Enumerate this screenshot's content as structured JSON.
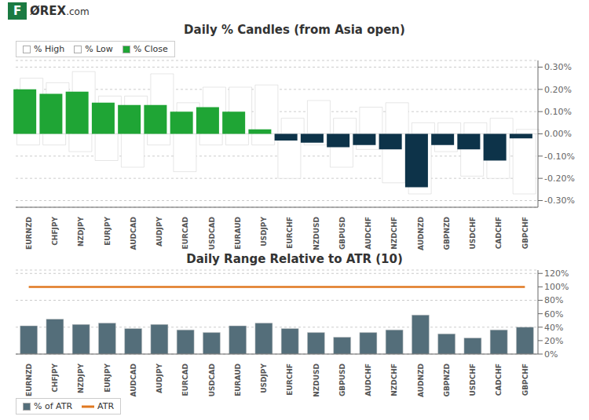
{
  "chart_data": [
    {
      "type": "bar",
      "title": "Daily % Candles (from Asia open)",
      "annotations": [
        "F",
        "ØREX",
        ".com"
      ],
      "categories": [
        "EURNZD",
        "CHFJPY",
        "NZDJPY",
        "EURJPY",
        "AUDCAD",
        "AUDJPY",
        "EURCAD",
        "USDCAD",
        "EURAUD",
        "USDJPY",
        "EURCHF",
        "NZDUSD",
        "GBPUSD",
        "AUDCHF",
        "NZDCHF",
        "AUDNZD",
        "GBPNZD",
        "USDCHF",
        "CADCHF",
        "GBPCHF"
      ],
      "series": [
        {
          "name": "% High",
          "color": "#FFFFFF",
          "values": [
            0.25,
            0.23,
            0.28,
            0.17,
            0.17,
            0.27,
            0.14,
            0.21,
            0.21,
            0.22,
            0.07,
            0.15,
            0.07,
            0.12,
            0.14,
            0.05,
            0.05,
            0.05,
            0.07,
            0.02
          ]
        },
        {
          "name": "% Low",
          "color": "#FFFFFF",
          "values": [
            -0.05,
            -0.05,
            -0.08,
            -0.12,
            -0.15,
            -0.05,
            -0.17,
            -0.05,
            -0.05,
            -0.05,
            -0.2,
            -0.05,
            -0.15,
            -0.07,
            -0.22,
            -0.27,
            -0.08,
            -0.19,
            -0.2,
            -0.27
          ]
        },
        {
          "name": "% Close",
          "color": "#1FA535",
          "values": [
            0.2,
            0.18,
            0.19,
            0.14,
            0.13,
            0.13,
            0.1,
            0.12,
            0.1,
            0.02,
            -0.03,
            -0.04,
            -0.06,
            -0.05,
            -0.07,
            -0.24,
            -0.05,
            -0.07,
            -0.12,
            -0.02
          ],
          "colors": [
            "#1FA535",
            "#1FA535",
            "#1FA535",
            "#1FA535",
            "#1FA535",
            "#1FA535",
            "#1FA535",
            "#1FA535",
            "#1FA535",
            "#1FA535",
            "#0D3349",
            "#0D3349",
            "#0D3349",
            "#0D3349",
            "#0D3349",
            "#0D3349",
            "#0D3349",
            "#0D3349",
            "#0D3349",
            "#0D3349"
          ]
        }
      ],
      "ylim": [
        -0.33,
        0.33
      ],
      "yticks": [
        {
          "value": -0.3,
          "label": "-0.30%"
        },
        {
          "value": -0.2,
          "label": "-0.20%"
        },
        {
          "value": -0.1,
          "label": "-0.10%"
        },
        {
          "value": 0.0,
          "label": "0.00%"
        },
        {
          "value": 0.1,
          "label": "0.10%"
        },
        {
          "value": 0.2,
          "label": "0.20%"
        },
        {
          "value": 0.3,
          "label": "0.30%"
        }
      ],
      "grid": true,
      "legend": "upper right"
    },
    {
      "type": "bar",
      "title": "Daily Range Relative to ATR (10)",
      "categories": [
        "EURNZD",
        "CHFJPY",
        "NZDJPY",
        "EURJPY",
        "AUDCAD",
        "AUDJPY",
        "EURCAD",
        "USDCAD",
        "EURAUD",
        "USDJPY",
        "EURCHF",
        "NZDUSD",
        "GBPUSD",
        "AUDCHF",
        "NZDCHF",
        "AUDNZD",
        "GBPNZD",
        "USDCHF",
        "CADCHF",
        "GBPCHF"
      ],
      "series": [
        {
          "name": "% of ATR",
          "color": "#546E7A",
          "values": [
            42,
            52,
            44,
            46,
            38,
            44,
            36,
            32,
            42,
            46,
            38,
            32,
            25,
            32,
            36,
            58,
            30,
            24,
            36,
            40
          ]
        },
        {
          "name": "ATR",
          "type": "line",
          "color": "#E07820",
          "values": [
            100,
            100,
            100,
            100,
            100,
            100,
            100,
            100,
            100,
            100,
            100,
            100,
            100,
            100,
            100,
            100,
            100,
            100,
            100,
            100
          ]
        }
      ],
      "ylim": [
        0,
        125
      ],
      "yticks": [
        {
          "value": 0,
          "label": "0%"
        },
        {
          "value": 20,
          "label": "20%"
        },
        {
          "value": 40,
          "label": "40%"
        },
        {
          "value": 60,
          "label": "60%"
        },
        {
          "value": 80,
          "label": "80%"
        },
        {
          "value": 100,
          "label": "100%"
        },
        {
          "value": 120,
          "label": "120%"
        }
      ],
      "grid": true,
      "legend": "lower center"
    }
  ]
}
